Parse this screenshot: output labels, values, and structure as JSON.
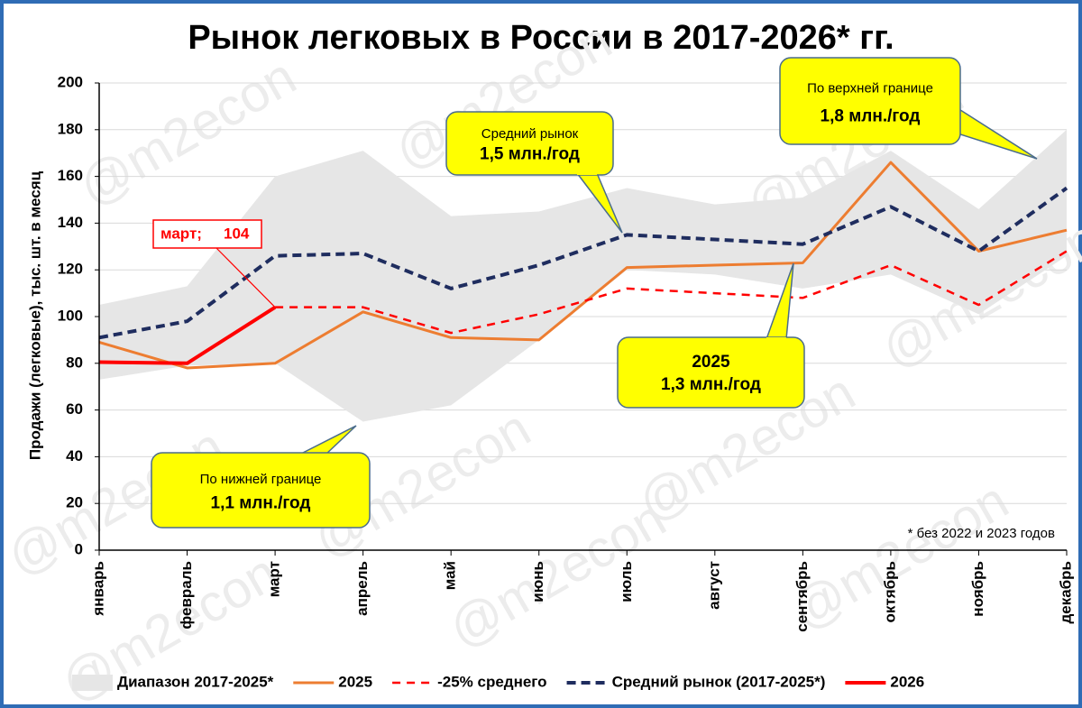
{
  "chart_data": {
    "type": "line",
    "title": "Рынок легковых в России в 2017-2026* гг.",
    "y_label": "Продажи (легковые), тыс. шт. в месяц",
    "footnote": "* без 2022 и 2023 годов",
    "watermark": "@m2econ",
    "categories": [
      "январь",
      "февраль",
      "март",
      "апрель",
      "май",
      "июнь",
      "июль",
      "август",
      "сентябрь",
      "октябрь",
      "ноябрь",
      "декабрь"
    ],
    "ylim": [
      0,
      200
    ],
    "yticks": [
      0,
      20,
      40,
      60,
      80,
      100,
      120,
      140,
      160,
      180,
      200
    ],
    "grid": true,
    "legend": "bottom",
    "series": [
      {
        "name": "Диапазон 2017-2025*",
        "color": "#e6e6e6",
        "style": "band",
        "high": [
          105,
          113,
          160,
          171,
          143,
          145,
          155,
          148,
          151,
          171,
          146,
          180
        ],
        "low": [
          73,
          79,
          80,
          55,
          62,
          90,
          120,
          118,
          112,
          118,
          101,
          126
        ]
      },
      {
        "name": "2025",
        "color": "#ed7d31",
        "style": "solid",
        "values": [
          89,
          78,
          80,
          102,
          91,
          90,
          121,
          122,
          123,
          166,
          128,
          137
        ]
      },
      {
        "name": "-25% среднего",
        "color": "#ff0000",
        "style": "dashed",
        "values": [
          null,
          null,
          104,
          104,
          93,
          101,
          112,
          110,
          108,
          122,
          105,
          128
        ]
      },
      {
        "name": "Средний рынок (2017-2025*)",
        "color": "#1f2d5f",
        "style": "dashed-bold",
        "values": [
          91,
          98,
          126,
          127,
          112,
          122,
          135,
          133,
          131,
          147,
          128,
          155
        ]
      },
      {
        "name": "2026",
        "color": "#ff0000",
        "style": "bold",
        "values": [
          80.5,
          80,
          104,
          null,
          null,
          null,
          null,
          null,
          null,
          null,
          null,
          null
        ]
      }
    ],
    "point_label_prefix": "март;",
    "annotations": [
      {
        "title": "По верхней границе",
        "text": "1,8 млн./год"
      },
      {
        "title": "Средний рынок",
        "text": "1,5 млн./год"
      },
      {
        "title": "2025",
        "text": "1,3 млн./год"
      },
      {
        "title": "По нижней границе",
        "text": "1,1 млн./год"
      }
    ]
  }
}
